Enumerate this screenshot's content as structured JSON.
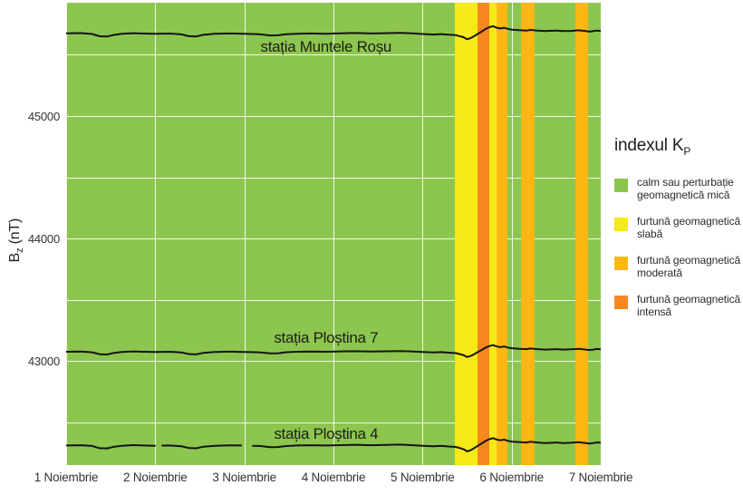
{
  "page": {
    "background": "#ffffff"
  },
  "chart_data": {
    "type": "line",
    "ylabel_parts": {
      "main": "B",
      "sub": "z",
      "unit": " (nT)"
    },
    "x_axis": {
      "range_hours": [
        0,
        144
      ],
      "tick_hours": [
        0,
        24,
        48,
        72,
        96,
        120,
        144
      ],
      "tick_labels": [
        "1 Noiembrie",
        "2 Noiembrie",
        "3 Noiembrie",
        "4 Noiembrie",
        "5 Noiembrie",
        "6 Noiembrie",
        "7 Noiembrie"
      ],
      "grid": true
    },
    "y_axis": {
      "range": [
        42150,
        45925
      ],
      "tick_values": [
        45000,
        44000,
        43000
      ],
      "tick_labels": [
        "45000",
        "44000",
        "43000"
      ],
      "grid_values": [
        42500,
        43000,
        43500,
        44000,
        44500,
        45000,
        45500
      ],
      "grid": true
    },
    "kp_colors": {
      "calm": "#8dc64f",
      "slaba": "#f4ea15",
      "moderata": "#fdb713",
      "intensa": "#f6881f"
    },
    "plot_background_level": "calm",
    "kp_bands": [
      {
        "level": "slaba",
        "start_h": 104.8,
        "end_h": 110.8
      },
      {
        "level": "intensa",
        "start_h": 110.8,
        "end_h": 114.0
      },
      {
        "level": "slaba",
        "start_h": 114.0,
        "end_h": 116.0
      },
      {
        "level": "moderata",
        "start_h": 116.0,
        "end_h": 118.9
      },
      {
        "level": "moderata",
        "start_h": 122.4,
        "end_h": 126.1
      },
      {
        "level": "moderata",
        "start_h": 137.1,
        "end_h": 140.7
      }
    ],
    "line_color": "#141414",
    "series": [
      {
        "key": "muntele-rosu",
        "name": "stația Muntele Roșu",
        "label_h": 70,
        "label_v": 45560,
        "segments": [
          [
            [
              0,
              45675
            ],
            [
              4,
              45677
            ],
            [
              7,
              45670
            ],
            [
              9,
              45651
            ],
            [
              11,
              45649
            ],
            [
              13,
              45663
            ],
            [
              15,
              45671
            ],
            [
              18,
              45676
            ],
            [
              21,
              45673
            ],
            [
              24,
              45671
            ],
            [
              28,
              45673
            ],
            [
              31,
              45667
            ],
            [
              33,
              45652
            ],
            [
              35,
              45650
            ],
            [
              37,
              45663
            ],
            [
              40,
              45671
            ],
            [
              44,
              45674
            ],
            [
              48,
              45671
            ],
            [
              52,
              45668
            ],
            [
              55,
              45658
            ],
            [
              57,
              45659
            ],
            [
              59,
              45667
            ],
            [
              62,
              45672
            ],
            [
              66,
              45674
            ],
            [
              70,
              45672
            ],
            [
              74,
              45675
            ],
            [
              78,
              45678
            ],
            [
              82,
              45674
            ],
            [
              86,
              45676
            ],
            [
              90,
              45679
            ],
            [
              93,
              45675
            ],
            [
              96,
              45670
            ],
            [
              99,
              45665
            ],
            [
              101,
              45669
            ],
            [
              103,
              45664
            ],
            [
              105,
              45660
            ],
            [
              107,
              45644
            ],
            [
              108,
              45627
            ],
            [
              109,
              45637
            ],
            [
              110,
              45653
            ],
            [
              111,
              45673
            ],
            [
              112,
              45691
            ],
            [
              113,
              45711
            ],
            [
              114,
              45725
            ],
            [
              115,
              45733
            ],
            [
              116,
              45721
            ],
            [
              117,
              45715
            ],
            [
              118,
              45721
            ],
            [
              119,
              45711
            ],
            [
              120,
              45705
            ],
            [
              122,
              45701
            ],
            [
              124,
              45697
            ],
            [
              125,
              45703
            ],
            [
              127,
              45697
            ],
            [
              129,
              45693
            ],
            [
              132,
              45697
            ],
            [
              134,
              45693
            ],
            [
              136,
              45695
            ],
            [
              138,
              45700
            ],
            [
              140,
              45693
            ],
            [
              141,
              45689
            ],
            [
              142,
              45693
            ],
            [
              143,
              45698
            ],
            [
              144,
              45695
            ]
          ]
        ]
      },
      {
        "key": "plostina-7",
        "name": "stația Ploștina 7",
        "label_h": 70,
        "label_v": 43190,
        "segments": [
          [
            [
              0,
              43075
            ],
            [
              4,
              43077
            ],
            [
              7,
              43071
            ],
            [
              9,
              43055
            ],
            [
              11,
              43053
            ],
            [
              13,
              43066
            ],
            [
              15,
              43073
            ],
            [
              18,
              43078
            ],
            [
              21,
              43075
            ],
            [
              24,
              43073
            ],
            [
              28,
              43075
            ],
            [
              31,
              43070
            ],
            [
              33,
              43057
            ],
            [
              35,
              43054
            ],
            [
              37,
              43066
            ],
            [
              40,
              43073
            ],
            [
              44,
              43076
            ],
            [
              48,
              43074
            ],
            [
              52,
              43071
            ],
            [
              55,
              43062
            ],
            [
              57,
              43063
            ],
            [
              59,
              43071
            ],
            [
              62,
              43075
            ],
            [
              66,
              43077
            ],
            [
              70,
              43075
            ],
            [
              74,
              43078
            ],
            [
              78,
              43080
            ],
            [
              82,
              43077
            ],
            [
              86,
              43079
            ],
            [
              90,
              43081
            ],
            [
              93,
              43078
            ],
            [
              96,
              43073
            ],
            [
              99,
              43069
            ],
            [
              101,
              43072
            ],
            [
              103,
              43068
            ],
            [
              105,
              43064
            ],
            [
              107,
              43048
            ],
            [
              108,
              43032
            ],
            [
              109,
              43041
            ],
            [
              110,
              43057
            ],
            [
              111,
              43075
            ],
            [
              112,
              43091
            ],
            [
              113,
              43109
            ],
            [
              114,
              43122
            ],
            [
              115,
              43129
            ],
            [
              116,
              43118
            ],
            [
              117,
              43113
            ],
            [
              118,
              43118
            ],
            [
              119,
              43109
            ],
            [
              120,
              43104
            ],
            [
              122,
              43100
            ],
            [
              124,
              43097
            ],
            [
              125,
              43102
            ],
            [
              127,
              43097
            ],
            [
              129,
              43093
            ],
            [
              132,
              43097
            ],
            [
              134,
              43093
            ],
            [
              136,
              43095
            ],
            [
              138,
              43099
            ],
            [
              140,
              43093
            ],
            [
              141,
              43089
            ],
            [
              142,
              43093
            ],
            [
              143,
              43098
            ],
            [
              144,
              43095
            ]
          ]
        ]
      },
      {
        "key": "plostina-4",
        "name": "stația Ploștina 4",
        "label_h": 70,
        "label_v": 42400,
        "segments": [
          [
            [
              0,
              42310
            ],
            [
              4,
              42312
            ],
            [
              7,
              42306
            ],
            [
              9,
              42288
            ],
            [
              11,
              42286
            ],
            [
              13,
              42300
            ],
            [
              15,
              42308
            ],
            [
              18,
              42313
            ],
            [
              21,
              42310
            ],
            [
              23.9,
              42308
            ]
          ],
          [
            [
              25.9,
              42309
            ],
            [
              28,
              42310
            ],
            [
              31,
              42304
            ],
            [
              33,
              42290
            ],
            [
              35,
              42287
            ],
            [
              37,
              42300
            ],
            [
              40,
              42308
            ],
            [
              44,
              42311
            ],
            [
              47.1,
              42310
            ]
          ],
          [
            [
              50.3,
              42307
            ],
            [
              52,
              42306
            ],
            [
              55,
              42296
            ],
            [
              57,
              42297
            ],
            [
              59,
              42305
            ],
            [
              62,
              42310
            ],
            [
              66,
              42312
            ],
            [
              70,
              42310
            ],
            [
              74,
              42313
            ],
            [
              78,
              42316
            ],
            [
              82,
              42312
            ],
            [
              86,
              42314
            ],
            [
              90,
              42317
            ],
            [
              93,
              42313
            ],
            [
              96,
              42308
            ],
            [
              99,
              42303
            ],
            [
              101,
              42307
            ],
            [
              103,
              42302
            ],
            [
              105,
              42298
            ],
            [
              107,
              42280
            ],
            [
              108,
              42262
            ],
            [
              109,
              42272
            ],
            [
              110,
              42290
            ],
            [
              111,
              42310
            ],
            [
              112,
              42328
            ],
            [
              113,
              42348
            ],
            [
              114,
              42362
            ],
            [
              115,
              42370
            ],
            [
              116,
              42358
            ],
            [
              117,
              42352
            ],
            [
              118,
              42358
            ],
            [
              119,
              42348
            ],
            [
              120,
              42342
            ],
            [
              122,
              42338
            ],
            [
              124,
              42334
            ],
            [
              125,
              42340
            ],
            [
              127,
              42334
            ],
            [
              129,
              42330
            ],
            [
              132,
              42334
            ],
            [
              134,
              42330
            ],
            [
              136,
              42332
            ],
            [
              138,
              42337
            ],
            [
              140,
              42330
            ],
            [
              141,
              42326
            ],
            [
              142,
              42330
            ],
            [
              143,
              42335
            ],
            [
              144,
              42332
            ]
          ]
        ]
      }
    ]
  },
  "legend": {
    "title_main": "indexul K",
    "title_sub": "P",
    "items": [
      {
        "key": "calm",
        "level": "calm",
        "line1": "calm sau perturbație",
        "line2": "geomagnetică mică"
      },
      {
        "key": "slaba",
        "level": "slaba",
        "line1": "furtună geomagnetică",
        "line2": "slabă"
      },
      {
        "key": "moderata",
        "level": "moderata",
        "line1": "furtună geomagnetică",
        "line2": "moderată"
      },
      {
        "key": "intensa",
        "level": "intensa",
        "line1": "furtună geomagnetică",
        "line2": "intensă"
      }
    ]
  }
}
